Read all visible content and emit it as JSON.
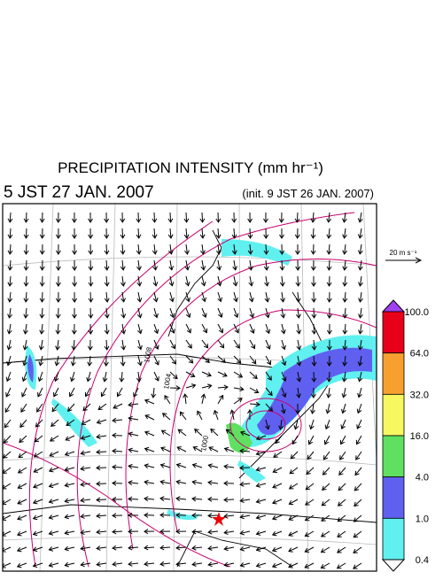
{
  "header": {
    "title": "PRECIPITATION INTENSITY (mm hr⁻¹)",
    "valid_time": "5 JST 27 JAN. 2007",
    "init_time": "(init. 9 JST 26 JAN. 2007)"
  },
  "wind_reference": {
    "label": "20 m s⁻¹"
  },
  "contour_labels": [
    "1008",
    "1004",
    "1000"
  ],
  "colorbar": {
    "labels": [
      "100.0",
      "64.0",
      "32.0",
      "16.0",
      "4.0",
      "1.0",
      "0.4"
    ],
    "colors": [
      "#a040f0",
      "#e8001a",
      "#f7a030",
      "#f7f760",
      "#60e060",
      "#6060f0",
      "#60f0f0",
      "#ffffff"
    ]
  }
}
